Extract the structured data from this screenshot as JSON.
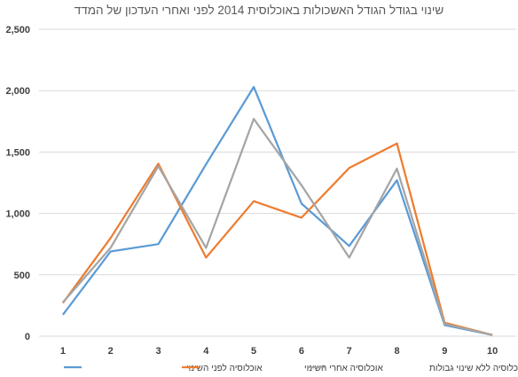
{
  "chart_data": {
    "type": "line",
    "title": "שינוי בגודל הגודל האשכולות באוכלוסית 2014 לפני ואחרי העדכון של המדד",
    "xlabel": "",
    "ylabel": "",
    "x": [
      1,
      2,
      3,
      4,
      5,
      6,
      7,
      8,
      9,
      10
    ],
    "ylim": [
      0,
      2500
    ],
    "yticks": [
      0,
      500,
      1000,
      1500,
      2000,
      2500
    ],
    "ytick_labels": [
      "0",
      "500",
      "1,000",
      "1,500",
      "2,000",
      "2,500"
    ],
    "grid": true,
    "legend_position": "bottom",
    "series": [
      {
        "name": "אוכלוסיה לפני השינוי",
        "color": "#5B9BD5",
        "values": [
          175,
          690,
          750,
          1400,
          2030,
          1080,
          735,
          1270,
          90,
          10
        ]
      },
      {
        "name": "אוכלוסיה אחרי השינוי",
        "color": "#ED7D31",
        "values": [
          270,
          800,
          1405,
          640,
          1100,
          965,
          1370,
          1570,
          110,
          10
        ]
      },
      {
        "name": "אוכלוסיה ללא שינוי גבולות",
        "color": "#A5A5A5",
        "values": [
          275,
          720,
          1385,
          720,
          1770,
          1230,
          640,
          1365,
          100,
          10
        ]
      }
    ]
  }
}
